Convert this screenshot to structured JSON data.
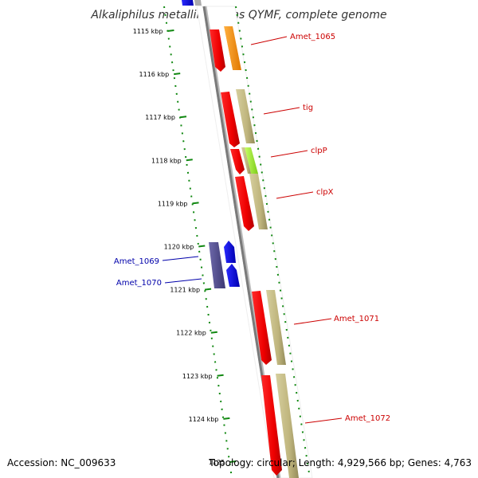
{
  "title": "Alkaliphilus metalliredigens QYMF, complete genome",
  "footer": {
    "accession": "Accession: NC_009633",
    "topology": "Topology: circular; Length: 4,929,566 bp; Genes: 4,763"
  },
  "scale_labels": [
    "1115 kbp",
    "1116 kbp",
    "1117 kbp",
    "1118 kbp",
    "1119 kbp",
    "1120 kbp",
    "1121 kbp",
    "1122 kbp",
    "1123 kbp",
    "1124 kbp",
    "1125"
  ],
  "gene_labels": [
    {
      "name": "Amet_1065",
      "strand": "forward"
    },
    {
      "name": "tig",
      "strand": "forward"
    },
    {
      "name": "clpP",
      "strand": "forward"
    },
    {
      "name": "clpX",
      "strand": "forward"
    },
    {
      "name": "Amet_1069",
      "strand": "reverse"
    },
    {
      "name": "Amet_1070",
      "strand": "reverse"
    },
    {
      "name": "Amet_1071",
      "strand": "forward"
    },
    {
      "name": "Amet_1072",
      "strand": "forward"
    }
  ],
  "colors": {
    "forward_label": "#cc0000",
    "reverse_label": "#0000aa",
    "cds_forward": "#ff0000",
    "cds_reverse": "#0000ff",
    "feature_tan": "#c8bf8a",
    "feature_orange": "#ff9900",
    "feature_lime": "#a6ff33",
    "feature_purple": "#55508f",
    "backbone": "#888888",
    "scale_ticks": "#118811"
  }
}
